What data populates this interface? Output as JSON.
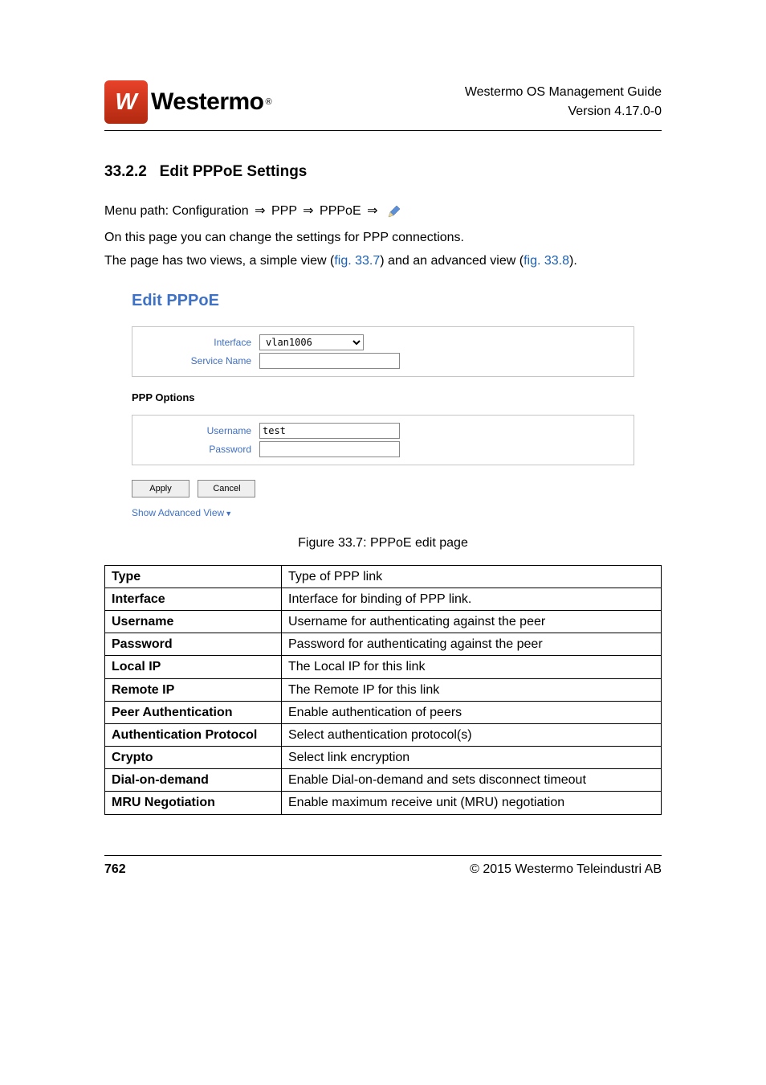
{
  "header": {
    "logo_w": "W",
    "logo_text": "Westermo",
    "reg": "®",
    "title_line1": "Westermo OS Management Guide",
    "title_line2": "Version 4.17.0-0"
  },
  "section": {
    "number": "33.2.2",
    "title": "Edit PPPoE Settings"
  },
  "body": {
    "menu_path_prefix": "Menu path: Configuration",
    "arrow": "⇒",
    "menu_ppp": "PPP",
    "menu_pppoe": "PPPoE",
    "line2": "On this page you can change the settings for PPP connections.",
    "line3a": "The page has two views, a simple view (",
    "fig337": "fig. 33.7",
    "line3b": ") and an advanced view (",
    "fig338": "fig. 33.8",
    "line3c": ")."
  },
  "screenshot": {
    "title": "Edit PPPoE",
    "labels": {
      "interface": "Interface",
      "service_name": "Service Name",
      "username": "Username",
      "password": "Password"
    },
    "values": {
      "interface": "vlan1006",
      "service_name": "",
      "username": "test",
      "password": ""
    },
    "ppp_options": "PPP Options",
    "buttons": {
      "apply": "Apply",
      "cancel": "Cancel"
    },
    "advanced_view": "Show Advanced View"
  },
  "caption": "Figure 33.7: PPPoE edit page",
  "table": [
    {
      "k": "Type",
      "v": "Type of PPP link"
    },
    {
      "k": "Interface",
      "v": "Interface for binding of PPP link."
    },
    {
      "k": "Username",
      "v": "Username for authenticating against the peer"
    },
    {
      "k": "Password",
      "v": "Password for authenticating against the peer"
    },
    {
      "k": "Local IP",
      "v": "The Local IP for this link"
    },
    {
      "k": "Remote IP",
      "v": "The Remote IP for this link"
    },
    {
      "k": "Peer Authentication",
      "v": "Enable authentication of peers"
    },
    {
      "k": "Authentication Protocol",
      "v": "Select authentication protocol(s)"
    },
    {
      "k": "Crypto",
      "v": "Select link encryption"
    },
    {
      "k": "Dial-on-demand",
      "v": "Enable Dial-on-demand and sets disconnect timeout"
    },
    {
      "k": "MRU Negotiation",
      "v": "Enable maximum receive unit (MRU) negotiation"
    }
  ],
  "footer": {
    "page": "762",
    "copyright": "© 2015 Westermo Teleindustri AB"
  }
}
